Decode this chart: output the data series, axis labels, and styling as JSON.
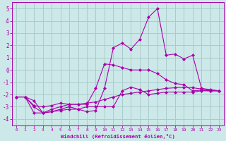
{
  "xlabel": "Windchill (Refroidissement éolien,°C)",
  "background_color": "#cce8e8",
  "grid_color": "#aacccc",
  "line_color": "#aa00aa",
  "xlim": [
    -0.5,
    23.5
  ],
  "ylim": [
    -4.5,
    5.5
  ],
  "xticks": [
    0,
    1,
    2,
    3,
    4,
    5,
    6,
    7,
    8,
    9,
    10,
    11,
    12,
    13,
    14,
    15,
    16,
    17,
    18,
    19,
    20,
    21,
    22,
    23
  ],
  "yticks": [
    -4,
    -3,
    -2,
    -1,
    0,
    1,
    2,
    3,
    4,
    5
  ],
  "series": [
    {
      "x": [
        0,
        1,
        2,
        3,
        4,
        5,
        6,
        7,
        8,
        9,
        10,
        11,
        12,
        13,
        14,
        15,
        16,
        17,
        18,
        19,
        20,
        21,
        22,
        23
      ],
      "y": [
        -2.2,
        -2.2,
        -2.5,
        -3.5,
        -3.4,
        -3.3,
        -3.2,
        -3.2,
        -3.4,
        -3.3,
        -1.5,
        1.8,
        2.2,
        1.7,
        2.5,
        4.3,
        5.0,
        1.2,
        1.3,
        0.9,
        1.2,
        -1.5,
        -1.6,
        -1.7
      ]
    },
    {
      "x": [
        0,
        1,
        2,
        3,
        4,
        5,
        6,
        7,
        8,
        9,
        10,
        11,
        12,
        13,
        14,
        15,
        16,
        17,
        18,
        19,
        20,
        21,
        22,
        23
      ],
      "y": [
        -2.2,
        -2.2,
        -3.5,
        -3.5,
        -3.4,
        -3.2,
        -3.0,
        -3.2,
        -3.0,
        -3.0,
        -3.0,
        -3.0,
        -1.7,
        -1.4,
        -1.6,
        -2.0,
        -1.9,
        -1.8,
        -1.8,
        -1.8,
        -1.8,
        -1.7,
        -1.7,
        -1.7
      ]
    },
    {
      "x": [
        0,
        1,
        2,
        3,
        4,
        5,
        6,
        7,
        8,
        9,
        10,
        11,
        12,
        13,
        14,
        15,
        16,
        17,
        18,
        19,
        20,
        21,
        22,
        23
      ],
      "y": [
        -2.2,
        -2.2,
        -2.9,
        -3.0,
        -2.9,
        -2.7,
        -2.8,
        -2.8,
        -2.8,
        -1.5,
        0.5,
        0.4,
        0.2,
        0.0,
        0.0,
        0.0,
        -0.3,
        -0.8,
        -1.1,
        -1.2,
        -1.7,
        -1.65,
        -1.7,
        -1.7
      ]
    },
    {
      "x": [
        0,
        1,
        2,
        3,
        4,
        5,
        6,
        7,
        8,
        9,
        10,
        11,
        12,
        13,
        14,
        15,
        16,
        17,
        18,
        19,
        20,
        21,
        22,
        23
      ],
      "y": [
        -2.2,
        -2.2,
        -3.0,
        -3.5,
        -3.2,
        -3.0,
        -2.8,
        -2.8,
        -2.7,
        -2.6,
        -2.4,
        -2.2,
        -2.0,
        -1.9,
        -1.8,
        -1.7,
        -1.6,
        -1.5,
        -1.45,
        -1.4,
        -1.45,
        -1.55,
        -1.65,
        -1.7
      ]
    }
  ],
  "marker": "D",
  "marker_size": 2,
  "line_width": 0.8
}
